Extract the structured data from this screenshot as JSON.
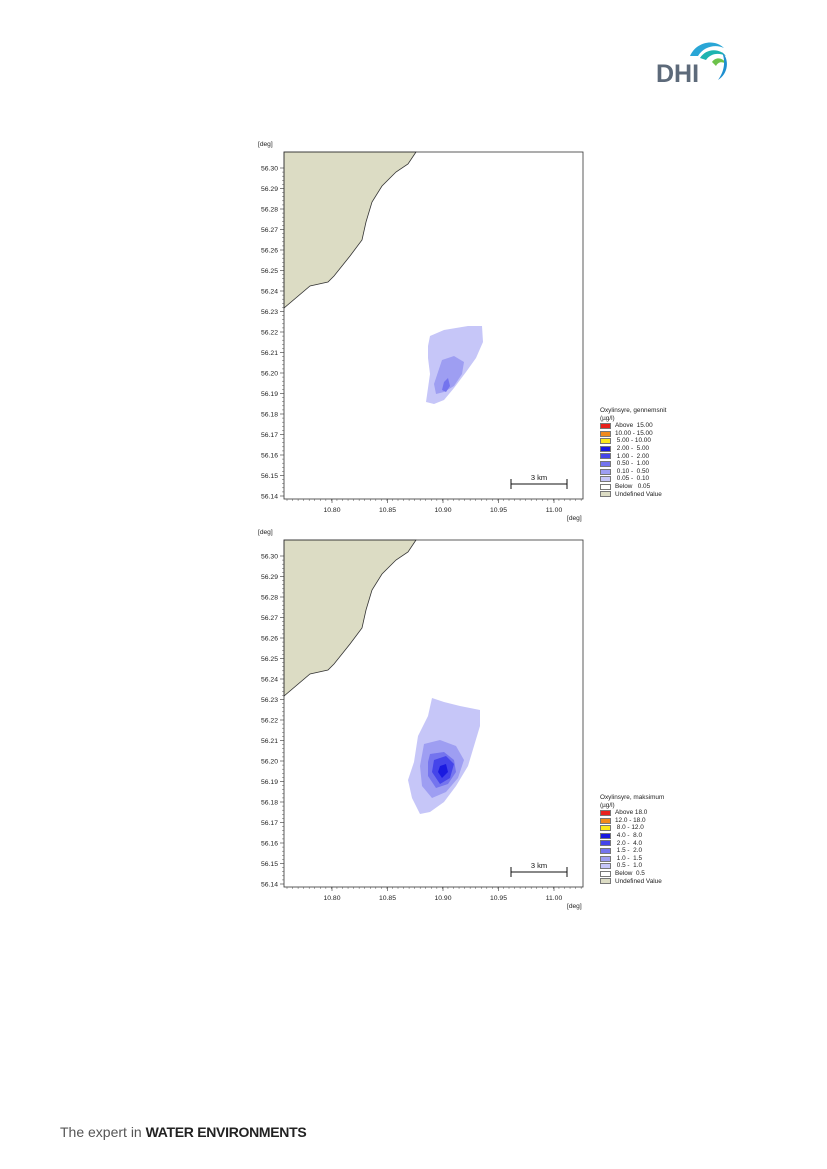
{
  "header": {
    "logo_text": "DHI"
  },
  "footer": {
    "prefix": "The expert in",
    "emphasis": "WATER ENVIRONMENTS"
  },
  "maps": [
    {
      "y_unit": "[deg]",
      "x_unit": "[deg]",
      "y_ticks": [
        "56.30",
        "56.29",
        "56.28",
        "56.27",
        "56.26",
        "56.25",
        "56.24",
        "56.23",
        "56.22",
        "56.21",
        "56.20",
        "56.19",
        "56.18",
        "56.17",
        "56.16",
        "56.15",
        "56.14"
      ],
      "x_ticks": [
        "10.80",
        "10.85",
        "10.90",
        "10.95",
        "11.00"
      ],
      "scale_label": "3 km",
      "legend": {
        "title": "Oxylinsyre, gennemsnit",
        "unit": "(µg/l)",
        "items": [
          {
            "label": "Above  15.00",
            "color": "#e8201c"
          },
          {
            "label": "10.00 - 15.00",
            "color": "#f08a1c"
          },
          {
            "label": " 5.00 - 10.00",
            "color": "#fbe81c"
          },
          {
            "label": " 2.00 -  5.00",
            "color": "#1a1ae0"
          },
          {
            "label": " 1.00 -  2.00",
            "color": "#4545ea"
          },
          {
            "label": " 0.50 -  1.00",
            "color": "#7474ee"
          },
          {
            "label": " 0.10 -  0.50",
            "color": "#9e9ef2"
          },
          {
            "label": " 0.05 -  0.10",
            "color": "#c6c6f8"
          },
          {
            "label": "Below   0.05",
            "color": "#ffffff"
          },
          {
            "label": "Undefined Value",
            "color": "#dcdcc4"
          }
        ]
      }
    },
    {
      "y_unit": "[deg]",
      "x_unit": "[deg]",
      "y_ticks": [
        "56.30",
        "56.29",
        "56.28",
        "56.27",
        "56.26",
        "56.25",
        "56.24",
        "56.23",
        "56.22",
        "56.21",
        "56.20",
        "56.19",
        "56.18",
        "56.17",
        "56.16",
        "56.15",
        "56.14"
      ],
      "x_ticks": [
        "10.80",
        "10.85",
        "10.90",
        "10.95",
        "11.00"
      ],
      "scale_label": "3 km",
      "legend": {
        "title": "Oxylinsyre, maksimum",
        "unit": "(µg/l)",
        "items": [
          {
            "label": "Above 18.0",
            "color": "#e8201c"
          },
          {
            "label": "12.0 - 18.0",
            "color": "#f08a1c"
          },
          {
            "label": " 8.0 - 12.0",
            "color": "#fbe81c"
          },
          {
            "label": " 4.0 -  8.0",
            "color": "#1a1ae0"
          },
          {
            "label": " 2.0 -  4.0",
            "color": "#4545ea"
          },
          {
            "label": " 1.5 -  2.0",
            "color": "#7474ee"
          },
          {
            "label": " 1.0 -  1.5",
            "color": "#9e9ef2"
          },
          {
            "label": " 0.5 -  1.0",
            "color": "#c6c6f8"
          },
          {
            "label": "Below  0.5",
            "color": "#ffffff"
          },
          {
            "label": "Undefined Value",
            "color": "#dcdcc4"
          }
        ]
      }
    }
  ]
}
